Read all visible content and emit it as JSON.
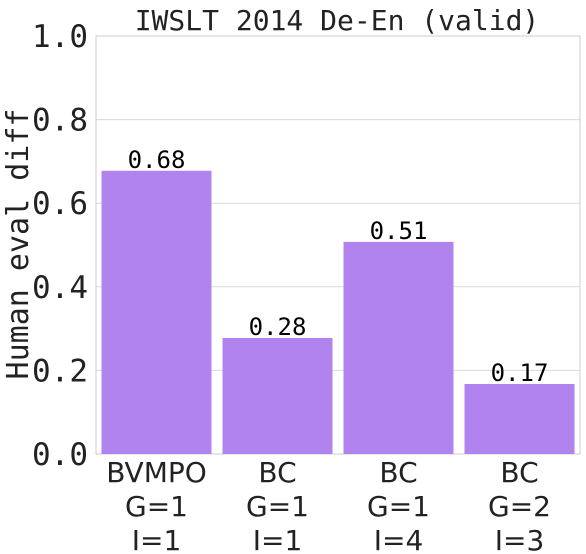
{
  "chart_data": {
    "type": "bar",
    "title": "IWSLT 2014 De-En (valid)",
    "xlabel": "",
    "ylabel": "Human eval diff",
    "ylim": [
      0,
      1.0
    ],
    "yticks": [
      "0.0",
      "0.2",
      "0.4",
      "0.6",
      "0.8",
      "1.0"
    ],
    "categories": [
      [
        "BVMPO",
        "G=1",
        "I=1"
      ],
      [
        "BC",
        "G=1",
        "I=1"
      ],
      [
        "BC",
        "G=1",
        "I=4"
      ],
      [
        "BC",
        "G=2",
        "I=3"
      ]
    ],
    "values": [
      0.68,
      0.28,
      0.51,
      0.17
    ],
    "data_labels": [
      "0.68",
      "0.28",
      "0.51",
      "0.17"
    ],
    "bar_color": "#b083ee",
    "grid": true,
    "legend": "none"
  }
}
